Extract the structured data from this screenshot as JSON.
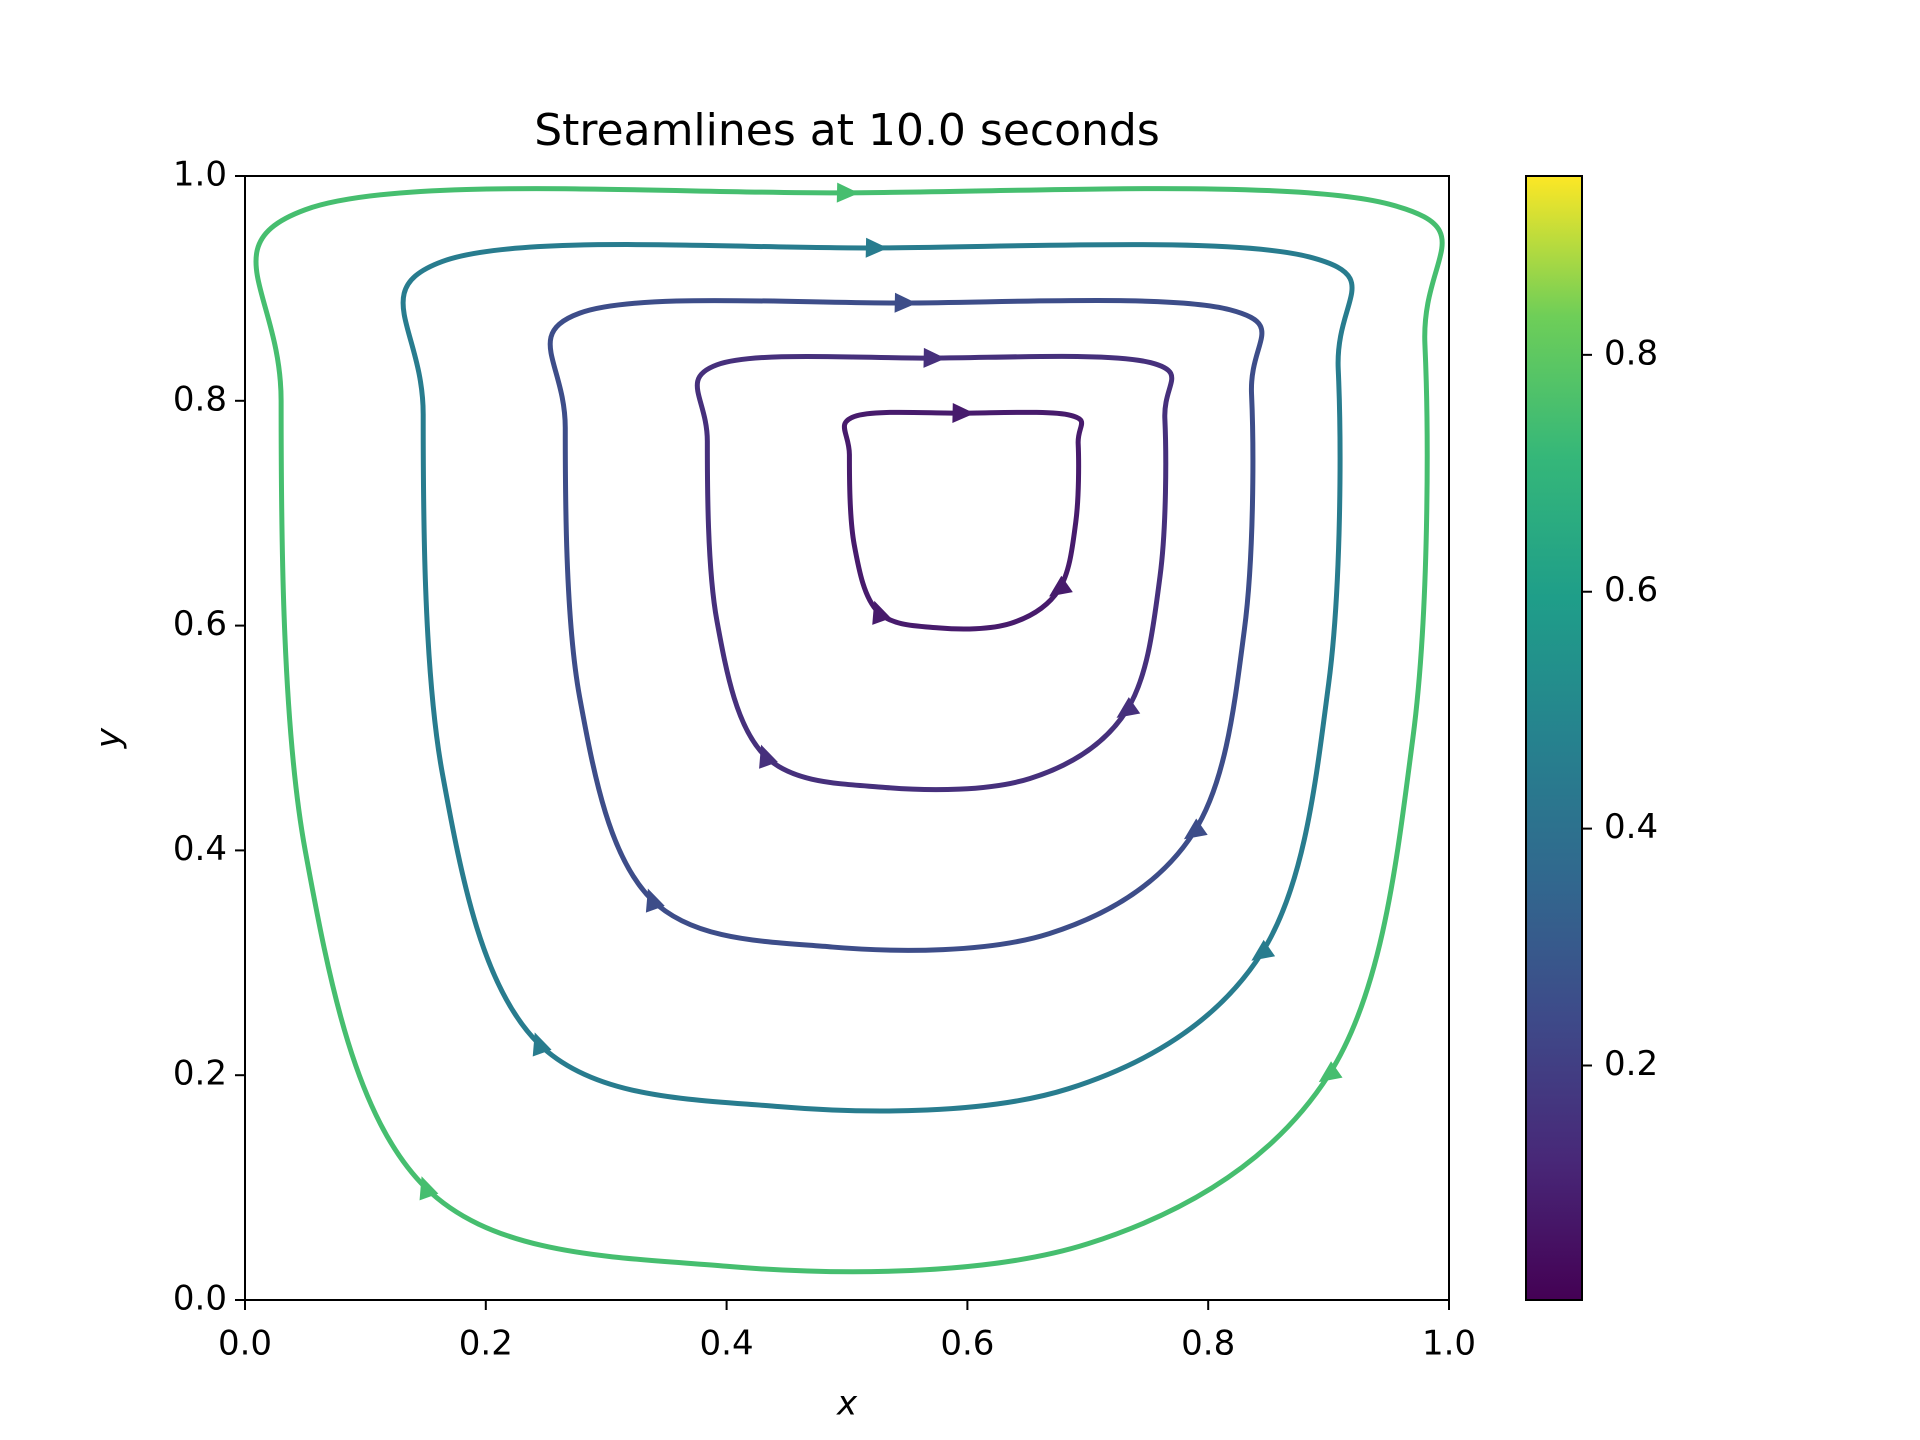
{
  "chart_data": {
    "type": "streamplot",
    "title": "Streamlines at 10.0 seconds",
    "x_label": "x",
    "y_label": "y",
    "xlim": [
      0,
      1
    ],
    "ylim": [
      0,
      1
    ],
    "xticks": [
      {
        "value": 0,
        "label": "0.0"
      },
      0.2,
      0.4,
      0.6,
      0.8,
      {
        "value": 1,
        "label": "1.0"
      }
    ],
    "yticks": [
      {
        "value": 0,
        "label": "0.0"
      },
      0.2,
      0.4,
      0.6,
      0.8,
      {
        "value": 1,
        "label": "1.0"
      }
    ],
    "colormap": "viridis",
    "clim": [
      0.002,
      0.951
    ],
    "cticks": [
      0.2,
      0.4,
      0.6,
      0.8
    ],
    "streamlines": [
      {
        "speed": 0.75,
        "x": [
          0.05,
          0.5,
          0.95,
          0.98,
          0.97,
          0.9,
          0.7,
          0.4,
          0.15,
          0.05,
          0.03
        ],
        "y": [
          0.97,
          0.985,
          0.975,
          0.85,
          0.5,
          0.2,
          0.05,
          0.03,
          0.1,
          0.4,
          0.8
        ]
      },
      {
        "speed": 0.45,
        "x": [
          0.164,
          0.524,
          0.884,
          0.908,
          0.9,
          0.844,
          0.684,
          0.444,
          0.244,
          0.164,
          0.148
        ],
        "y": [
          0.924,
          0.936,
          0.928,
          0.828,
          0.548,
          0.308,
          0.188,
          0.172,
          0.228,
          0.468,
          0.788
        ]
      },
      {
        "speed": 0.25,
        "x": [
          0.278,
          0.548,
          0.818,
          0.836,
          0.83,
          0.788,
          0.668,
          0.488,
          0.338,
          0.278,
          0.266
        ],
        "y": [
          0.878,
          0.887,
          0.881,
          0.806,
          0.596,
          0.416,
          0.326,
          0.314,
          0.356,
          0.536,
          0.776
        ]
      },
      {
        "speed": 0.15,
        "x": [
          0.392,
          0.572,
          0.752,
          0.764,
          0.76,
          0.732,
          0.652,
          0.532,
          0.432,
          0.392,
          0.384
        ],
        "y": [
          0.832,
          0.838,
          0.834,
          0.784,
          0.644,
          0.524,
          0.464,
          0.456,
          0.484,
          0.604,
          0.764
        ]
      },
      {
        "speed": 0.08,
        "x": [
          0.506,
          0.596,
          0.686,
          0.692,
          0.69,
          0.676,
          0.636,
          0.576,
          0.526,
          0.506,
          0.502
        ],
        "y": [
          0.786,
          0.789,
          0.787,
          0.762,
          0.692,
          0.632,
          0.602,
          0.598,
          0.612,
          0.672,
          0.752
        ]
      }
    ]
  }
}
